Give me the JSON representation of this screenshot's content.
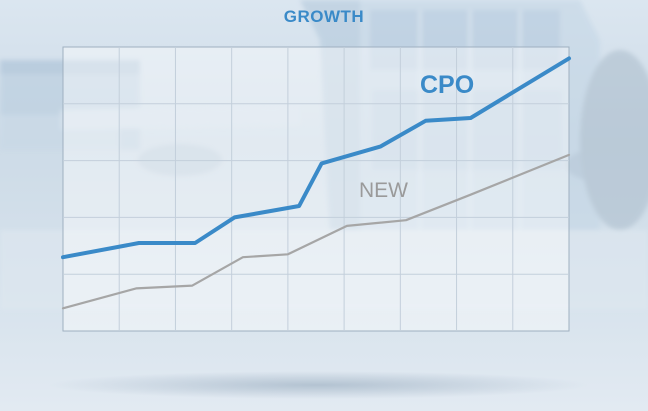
{
  "chart_data": {
    "type": "line",
    "title": "GROWTH",
    "xlabel": "",
    "ylabel": "",
    "x": [
      0,
      1,
      2,
      3,
      4,
      5,
      6,
      7,
      8,
      9,
      10,
      11,
      12,
      13,
      14,
      15,
      16,
      17,
      18
    ],
    "xlim": [
      0,
      18
    ],
    "ylim": [
      0,
      100
    ],
    "grid": true,
    "legend": "inline-labels",
    "series": [
      {
        "name": "CPO",
        "color": "#3a8ac8",
        "points": [
          [
            0,
            26
          ],
          [
            2.7,
            31
          ],
          [
            4.7,
            31
          ],
          [
            6.1,
            40
          ],
          [
            8.4,
            44
          ],
          [
            9.2,
            59
          ],
          [
            11.3,
            65
          ],
          [
            12.9,
            74
          ],
          [
            14.5,
            75
          ],
          [
            18,
            96
          ]
        ]
      },
      {
        "name": "NEW",
        "color": "#a6a6a6",
        "points": [
          [
            0,
            8
          ],
          [
            2.6,
            15
          ],
          [
            4.6,
            16
          ],
          [
            6.4,
            26
          ],
          [
            8.0,
            27
          ],
          [
            10.1,
            37
          ],
          [
            12.2,
            39
          ],
          [
            14.5,
            48
          ],
          [
            18,
            62
          ]
        ]
      }
    ]
  }
}
